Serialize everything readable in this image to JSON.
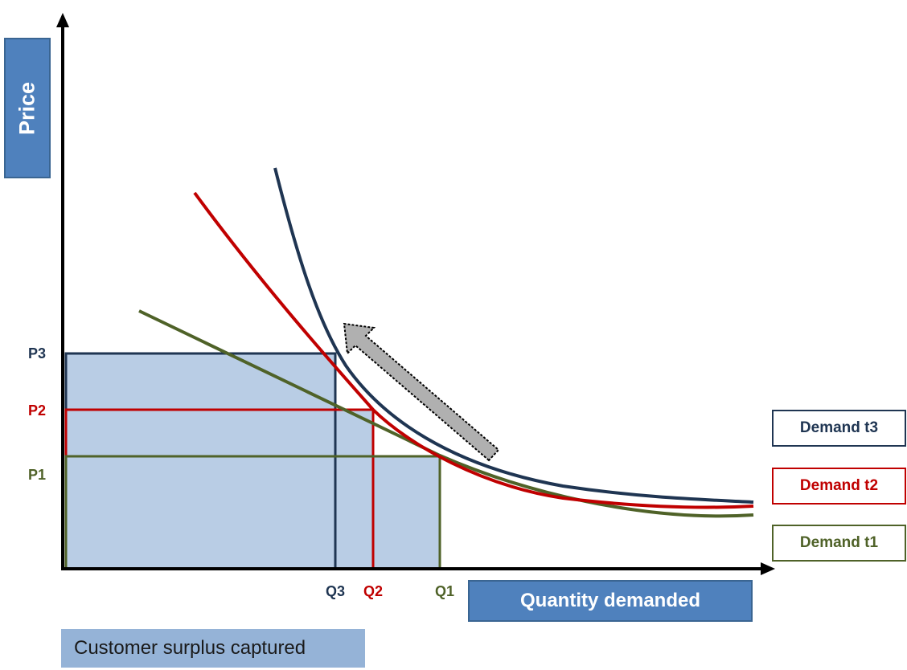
{
  "axes": {
    "y_label": "Price",
    "x_label": "Quantity demanded"
  },
  "price_labels": {
    "p3": "P3",
    "p2": "P2",
    "p1": "P1"
  },
  "quantity_labels": {
    "q3": "Q3",
    "q2": "Q2",
    "q1": "Q1"
  },
  "legend": {
    "t3": "Demand t3",
    "t2": "Demand t2",
    "t1": "Demand t1"
  },
  "surplus_label": "Customer surplus captured",
  "colors": {
    "t3": "#1f3552",
    "t2": "#c00000",
    "t1": "#4f6228",
    "surplus_fill": "#b9cde5",
    "axis": "#000000",
    "accent_box": "#4f81bd",
    "arrow": "#b0b0b0"
  }
}
